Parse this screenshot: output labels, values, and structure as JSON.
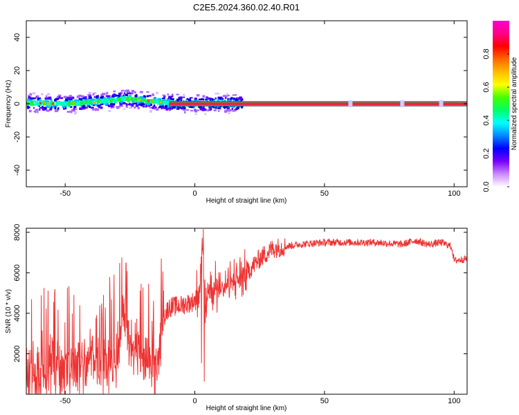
{
  "figure_title": "C2E5.2024.360.02.40.R01",
  "colors": {
    "snr_line": "#ee3333",
    "spectrum_band": "#ee2244",
    "band_edge": "#00aa44",
    "axis": "#000000"
  },
  "chart_data": [
    {
      "type": "heatmap",
      "title": "",
      "xlabel": "Height of straight line (km)",
      "ylabel": "Frequency (Hz)",
      "xlim": [
        -65,
        105
      ],
      "ylim": [
        -50,
        50
      ],
      "x_ticks": [
        -50,
        0,
        50,
        100
      ],
      "y_ticks": [
        -40,
        -20,
        0,
        20,
        40
      ],
      "colorbar": {
        "label": "Normalized spectral amplitude",
        "range": [
          0.0,
          1.0
        ],
        "ticks": [
          "0.0",
          "0.2",
          "0.4",
          "0.6",
          "0.8"
        ],
        "colormap": [
          "#ffffff",
          "#cc88ff",
          "#7700ff",
          "#0000ff",
          "#0088ff",
          "#00ffff",
          "#00ff66",
          "#44ff00",
          "#ffff00",
          "#ffbb00",
          "#ff6600",
          "#ff0000",
          "#ff0088",
          "#ff00cc"
        ]
      },
      "dominant_frequency_hz": 0,
      "noisy_region_km": [
        -65,
        18
      ],
      "clean_band_start_km": -10,
      "peak_frequency_profile": {
        "x": [
          -65,
          -60,
          -55,
          -50,
          -45,
          -40,
          -35,
          -30,
          -25,
          -20,
          -15,
          -10,
          -5,
          0,
          5,
          10,
          15,
          20
        ],
        "y": [
          0.5,
          0.3,
          0,
          0,
          0.5,
          1,
          1.5,
          2.5,
          3,
          2,
          1,
          0.5,
          0,
          0,
          0,
          0.5,
          0,
          0
        ]
      }
    },
    {
      "type": "line",
      "title": "",
      "xlabel": "Height of straight line (km)",
      "ylabel": "SNR (10 * v/v)",
      "xlim": [
        -65,
        105
      ],
      "ylim": [
        0,
        8200
      ],
      "x_ticks": [
        -50,
        0,
        50,
        100
      ],
      "y_ticks": [
        2000,
        4000,
        6000,
        8000
      ],
      "series": [
        {
          "x": [
            -65,
            -60,
            -55,
            -50,
            -45,
            -40,
            -35,
            -30,
            -28,
            -25,
            -20,
            -15,
            -12,
            -10,
            -5,
            0,
            2,
            3,
            4,
            5,
            10,
            15,
            20,
            25,
            30,
            35,
            40,
            50,
            60,
            70,
            80,
            85,
            90,
            95,
            99,
            100,
            105
          ],
          "y": [
            1200,
            1000,
            1400,
            1300,
            1500,
            1700,
            1600,
            1800,
            4000,
            2800,
            1600,
            1200,
            3800,
            4300,
            4400,
            4600,
            5600,
            7800,
            3500,
            5200,
            5200,
            5600,
            6000,
            6700,
            7200,
            7300,
            7400,
            7500,
            7500,
            7500,
            7400,
            7600,
            7400,
            7500,
            7300,
            6600,
            6700
          ]
        }
      ]
    }
  ]
}
